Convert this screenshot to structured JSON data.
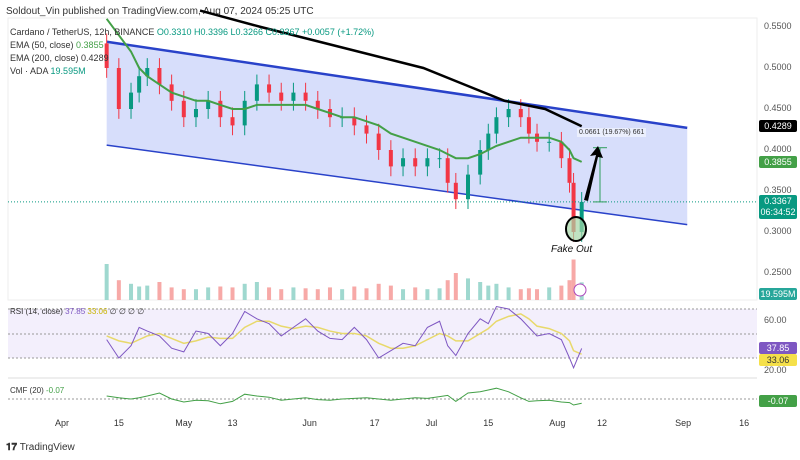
{
  "header": {
    "publisher": "Soldout_Vin published on TradingView.com, Aug 07, 2024 05:25 UTC"
  },
  "legend": {
    "symbol": "Cardano / TetherUS, 12h, BINANCE",
    "ohlc": "O0.3310 H0.3396 L0.3266 C0.3367 +0.0057 (+1.72%)",
    "ema50_label": "EMA (50, close)",
    "ema50_value": "0.3855",
    "ema200_label": "EMA (200, close)",
    "ema200_value": "0.4289",
    "vol_label": "Vol · ADA",
    "vol_value": "19.595M",
    "rsi_label": "RSI (14, close)",
    "rsi_value": "37.85",
    "rsi_ma": "33.06",
    "rsi_extra": "∅ ∅ ∅ ∅",
    "cmf_label": "CMF (20)",
    "cmf_value": "-0.07"
  },
  "annotations": {
    "measure": "0.0661 (19.67%) 661",
    "fake_out": "Fake Out"
  },
  "colors": {
    "up": "#089981",
    "down": "#f23645",
    "ema50": "#43a047",
    "ema200": "#000000",
    "channel": "#2942c9",
    "channel_fill": "#c9d3fa",
    "rsi": "#7e57c2",
    "rsi_ma": "#e8d96b",
    "cmf": "#43a047"
  },
  "price_axis": {
    "ticks": [
      "0.5500",
      "0.5000",
      "0.4500",
      "0.4000",
      "0.3500",
      "0.3000",
      "0.2500"
    ],
    "tick_values": [
      0.55,
      0.5,
      0.45,
      0.4,
      0.35,
      0.3,
      0.25
    ],
    "last_price": "0.3367",
    "countdown": "06:34:52",
    "ema200_tag": "0.4289",
    "ema50_tag": "0.3855",
    "vol_tag": "19.595M"
  },
  "rsi_axis": {
    "ticks": [
      "60.00",
      "20.00"
    ],
    "rsi_tag": "37.85",
    "ma_tag": "33.06"
  },
  "cmf_axis": {
    "tag": "-0.07"
  },
  "time_axis": [
    "Apr",
    "15",
    "May",
    "13",
    "Jun",
    "17",
    "Jul",
    "15",
    "Aug",
    "12",
    "Sep",
    "16"
  ],
  "footer": {
    "brand": "TradingView"
  },
  "chart_data": {
    "type": "candlestick",
    "price_scale": "linear",
    "ylim": [
      0.23,
      0.56
    ],
    "days": [
      12,
      15,
      18,
      20,
      22,
      25,
      28,
      31,
      34,
      37,
      40,
      43,
      46,
      49,
      52,
      55,
      58,
      61,
      64,
      67,
      70,
      73,
      76,
      79,
      82,
      85,
      88,
      91,
      94,
      96,
      98,
      101,
      104,
      106,
      108,
      111,
      114,
      116,
      118,
      121,
      124,
      126,
      127,
      129
    ],
    "close": [
      0.5,
      0.45,
      0.47,
      0.49,
      0.5,
      0.48,
      0.46,
      0.44,
      0.45,
      0.46,
      0.44,
      0.43,
      0.46,
      0.48,
      0.47,
      0.46,
      0.47,
      0.46,
      0.45,
      0.44,
      0.44,
      0.43,
      0.42,
      0.4,
      0.38,
      0.39,
      0.38,
      0.39,
      0.39,
      0.36,
      0.34,
      0.37,
      0.4,
      0.42,
      0.44,
      0.45,
      0.44,
      0.42,
      0.41,
      0.41,
      0.39,
      0.36,
      0.3,
      0.3367
    ],
    "ema50": [
      0.56,
      0.54,
      0.52,
      0.5,
      0.49,
      0.48,
      0.47,
      0.465,
      0.46,
      0.46,
      0.455,
      0.45,
      0.45,
      0.455,
      0.455,
      0.455,
      0.455,
      0.455,
      0.45,
      0.445,
      0.44,
      0.44,
      0.435,
      0.43,
      0.42,
      0.415,
      0.41,
      0.405,
      0.4,
      0.395,
      0.39,
      0.39,
      0.395,
      0.4,
      0.405,
      0.41,
      0.415,
      0.415,
      0.415,
      0.415,
      0.41,
      0.4,
      0.39,
      0.3855
    ],
    "ema200_points": [
      [
        35,
        0.57
      ],
      [
        50,
        0.55
      ],
      [
        70,
        0.525
      ],
      [
        90,
        0.5
      ],
      [
        100,
        0.48
      ],
      [
        110,
        0.46
      ],
      [
        120,
        0.45
      ],
      [
        129,
        0.4289
      ]
    ],
    "channel_upper": [
      [
        12,
        0.532
      ],
      [
        155,
        0.427
      ]
    ],
    "channel_lower": [
      [
        12,
        0.406
      ],
      [
        155,
        0.309
      ]
    ],
    "volume_m": [
      40,
      22,
      18,
      15,
      16,
      20,
      14,
      12,
      12,
      14,
      15,
      14,
      18,
      20,
      14,
      12,
      14,
      13,
      12,
      14,
      12,
      15,
      13,
      18,
      16,
      12,
      14,
      12,
      13,
      22,
      30,
      24,
      20,
      16,
      18,
      14,
      12,
      13,
      12,
      14,
      16,
      22,
      45,
      19.6
    ],
    "rsi": [
      45,
      30,
      40,
      55,
      52,
      48,
      38,
      35,
      52,
      50,
      40,
      50,
      68,
      62,
      58,
      48,
      55,
      62,
      52,
      46,
      45,
      55,
      45,
      30,
      36,
      42,
      40,
      55,
      60,
      40,
      32,
      50,
      62,
      58,
      72,
      70,
      62,
      55,
      48,
      50,
      45,
      30,
      22,
      37.85
    ],
    "rsi_ma": [
      48,
      44,
      42,
      45,
      48,
      50,
      46,
      42,
      44,
      47,
      46,
      46,
      55,
      60,
      60,
      56,
      54,
      56,
      55,
      52,
      50,
      50,
      48,
      42,
      38,
      38,
      40,
      45,
      50,
      48,
      44,
      44,
      50,
      54,
      60,
      64,
      66,
      62,
      56,
      54,
      50,
      44,
      36,
      33.06
    ],
    "cmf": [
      0.05,
      0.02,
      0.0,
      0.02,
      0.05,
      0.1,
      0.0,
      -0.05,
      -0.02,
      -0.03,
      -0.08,
      -0.04,
      0.08,
      0.05,
      0.03,
      -0.02,
      0.0,
      0.02,
      -0.01,
      -0.02,
      0.0,
      0.01,
      0.02,
      0.0,
      -0.02,
      0.0,
      0.02,
      0.01,
      0.04,
      0.06,
      -0.04,
      0.1,
      0.12,
      0.15,
      0.18,
      0.12,
      0.02,
      -0.04,
      -0.03,
      -0.02,
      -0.05,
      -0.06,
      -0.1,
      -0.07
    ],
    "measure": {
      "from": 0.3367,
      "to": 0.4028,
      "change": 0.0661,
      "percent": 19.67
    }
  }
}
